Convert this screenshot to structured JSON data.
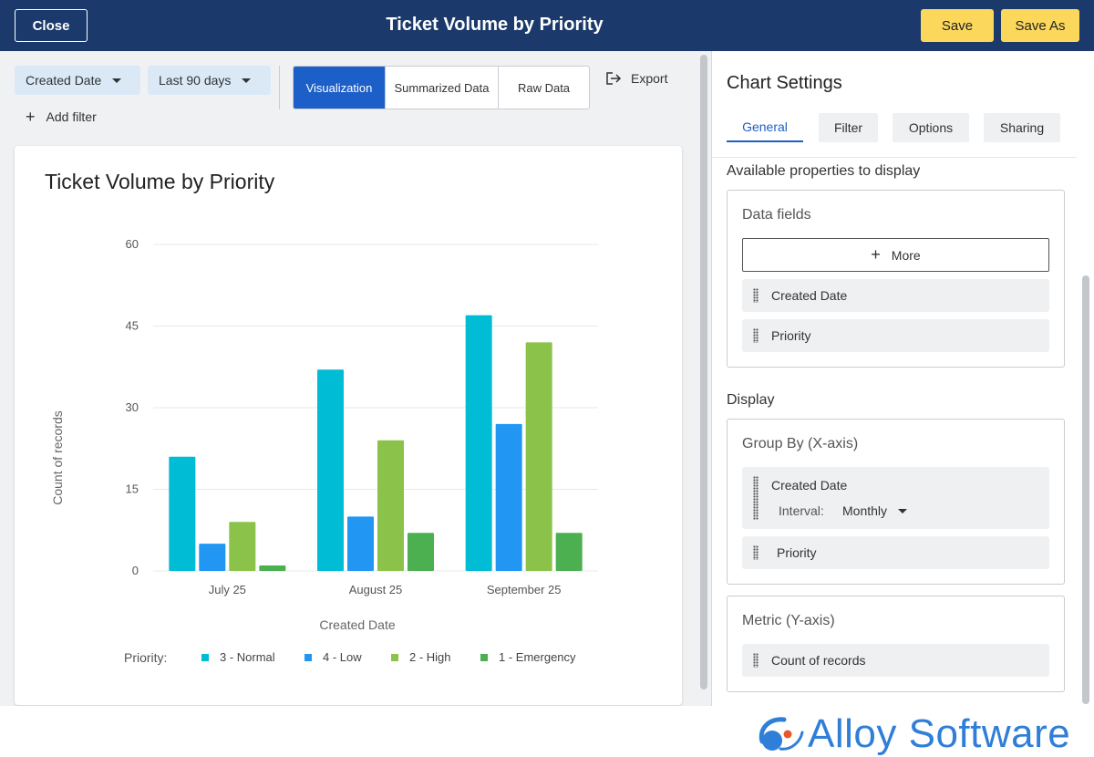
{
  "header": {
    "close_label": "Close",
    "title": "Ticket Volume by Priority",
    "save_label": "Save",
    "save_as_label": "Save As"
  },
  "toolbar": {
    "date_field": "Created Date",
    "date_range": "Last 90 days",
    "views": [
      "Visualization",
      "Summarized Data",
      "Raw Data"
    ],
    "active_view": "Visualization",
    "export_label": "Export",
    "add_filter_label": "Add filter"
  },
  "chart_card": {
    "title": "Ticket Volume by Priority"
  },
  "chart_data": {
    "type": "bar",
    "categories": [
      "July 25",
      "August 25",
      "September 25"
    ],
    "series": [
      {
        "name": "3 - Normal",
        "color": "#00bcd4",
        "values": [
          21,
          37,
          47
        ]
      },
      {
        "name": "4 - Low",
        "color": "#2196f3",
        "values": [
          5,
          10,
          27
        ]
      },
      {
        "name": "2 - High",
        "color": "#8bc34a",
        "values": [
          9,
          24,
          42
        ]
      },
      {
        "name": "1 - Emergency",
        "color": "#4caf50",
        "values": [
          1,
          7,
          7
        ]
      }
    ],
    "xlabel": "Created Date",
    "ylabel": "Count of records",
    "ylim": [
      0,
      60
    ],
    "yticks": [
      0,
      15,
      30,
      45,
      60
    ],
    "legend_title": "Priority:",
    "legend_position": "bottom",
    "grid": true
  },
  "settings": {
    "title": "Chart Settings",
    "tabs": [
      "General",
      "Filter",
      "Options",
      "Sharing"
    ],
    "active_tab": "General",
    "available_label": "Available properties to display",
    "data_fields_title": "Data fields",
    "more_label": "More",
    "data_fields": [
      "Created Date",
      "Priority"
    ],
    "display_label": "Display",
    "group_by_title": "Group By (X-axis)",
    "group_by_field": "Created Date",
    "interval_label": "Interval:",
    "interval_value": "Monthly",
    "group_by_second": "Priority",
    "metric_title": "Metric (Y-axis)",
    "metric_field": "Count of records"
  },
  "footer": {
    "logo_text": "Alloy Software"
  }
}
